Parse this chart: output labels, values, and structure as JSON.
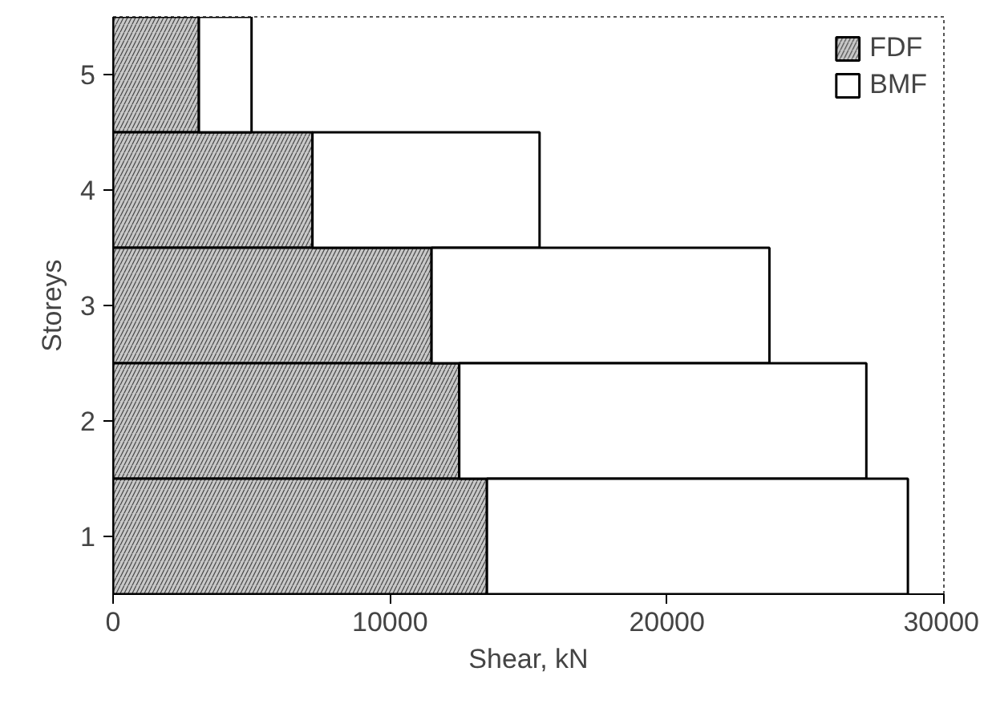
{
  "chart_data": {
    "type": "bar",
    "orientation": "horizontal",
    "stacked": true,
    "xlabel": "Shear, kN",
    "ylabel": "Storeys",
    "categories": [
      "5",
      "4",
      "3",
      "2",
      "1"
    ],
    "series": [
      {
        "name": "FDF",
        "color": "#c8c8c8",
        "values": [
          3100,
          7200,
          11500,
          12500,
          13500
        ]
      },
      {
        "name": "BMF",
        "color": "#ffffff",
        "values": [
          1900,
          8200,
          12200,
          14700,
          15200
        ]
      }
    ],
    "xlim": [
      0,
      30000
    ],
    "xticks": [
      0,
      10000,
      20000,
      30000
    ],
    "grid": false,
    "legend": "top right"
  }
}
